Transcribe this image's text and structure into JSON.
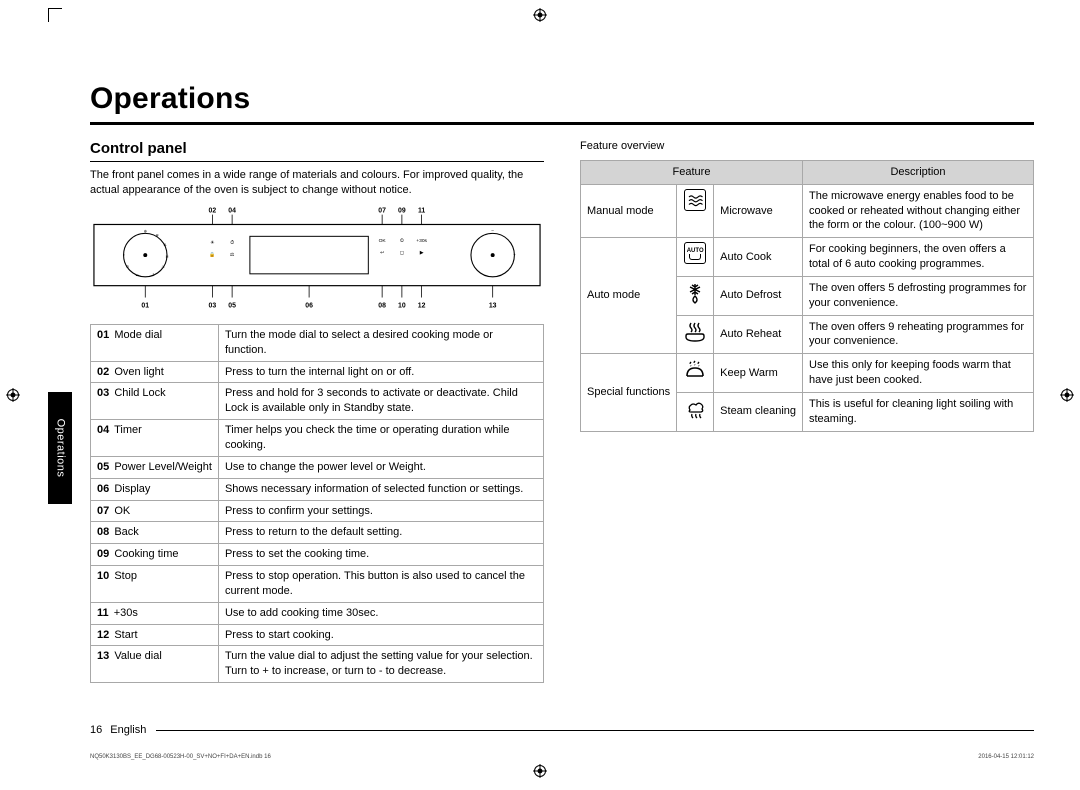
{
  "title": "Operations",
  "section": "Control panel",
  "intro": "The front panel comes in a wide range of materials and colours. For improved quality, the actual appearance of the oven is subject to change without notice.",
  "callouts_top": [
    "02",
    "04",
    "07",
    "09",
    "11"
  ],
  "callouts_bottom": [
    "01",
    "03",
    "05",
    "06",
    "08",
    "10",
    "12",
    "13"
  ],
  "controls": [
    {
      "num": "01",
      "name": "Mode dial",
      "desc": "Turn the mode dial to select a desired cooking mode or function."
    },
    {
      "num": "02",
      "name": "Oven light",
      "desc": "Press to turn the internal light on or off."
    },
    {
      "num": "03",
      "name": "Child Lock",
      "desc": "Press and hold for 3 seconds to activate or deactivate. Child Lock is available only in Standby state."
    },
    {
      "num": "04",
      "name": "Timer",
      "desc": "Timer helps you check the time or operating duration while cooking."
    },
    {
      "num": "05",
      "name": "Power Level/Weight",
      "desc": "Use to change the power level or Weight."
    },
    {
      "num": "06",
      "name": "Display",
      "desc": "Shows necessary information of selected function or settings."
    },
    {
      "num": "07",
      "name": "OK",
      "desc": "Press to confirm your settings."
    },
    {
      "num": "08",
      "name": "Back",
      "desc": "Press to return to the default setting."
    },
    {
      "num": "09",
      "name": "Cooking time",
      "desc": "Press to set the cooking time."
    },
    {
      "num": "10",
      "name": "Stop",
      "desc": "Press to stop operation. This button is also used to cancel the current mode."
    },
    {
      "num": "11",
      "name": "+30s",
      "desc": "Use to add cooking time 30sec."
    },
    {
      "num": "12",
      "name": "Start",
      "desc": "Press to start cooking."
    },
    {
      "num": "13",
      "name": "Value dial",
      "desc": "Turn the value dial to adjust the setting value for your selection. Turn to + to increase, or turn to - to decrease."
    }
  ],
  "feature_overview_label": "Feature overview",
  "feature_head": {
    "feature": "Feature",
    "desc": "Description"
  },
  "features": {
    "manual": {
      "group": "Manual mode",
      "rows": [
        {
          "icon": "microwave",
          "label": "Microwave",
          "desc": "The microwave energy enables food to be cooked or reheated without changing either the form or the colour. (100~900 W)"
        }
      ]
    },
    "auto": {
      "group": "Auto mode",
      "rows": [
        {
          "icon": "auto",
          "label": "Auto Cook",
          "desc": "For cooking beginners, the oven offers a total of 6 auto cooking programmes."
        },
        {
          "icon": "defrost",
          "label": "Auto Defrost",
          "desc": "The oven offers 5 defrosting programmes for your convenience."
        },
        {
          "icon": "reheat",
          "label": "Auto Reheat",
          "desc": "The oven offers 9 reheating programmes for your convenience."
        }
      ]
    },
    "special": {
      "group": "Special functions",
      "rows": [
        {
          "icon": "keepwarm",
          "label": "Keep Warm",
          "desc": "Use this only for keeping foods warm that have just been cooked."
        },
        {
          "icon": "steam",
          "label": "Steam cleaning",
          "desc": "This is useful for cleaning light soiling with steaming."
        }
      ]
    }
  },
  "sidetab": "Operations",
  "pagenum": "16",
  "lang": "English",
  "footfile": "NQ50K3130BS_EE_DG68-00523H-00_SV+NO+FI+DA+EN.indb   16",
  "footdate": "2016-04-15   12:01:12"
}
